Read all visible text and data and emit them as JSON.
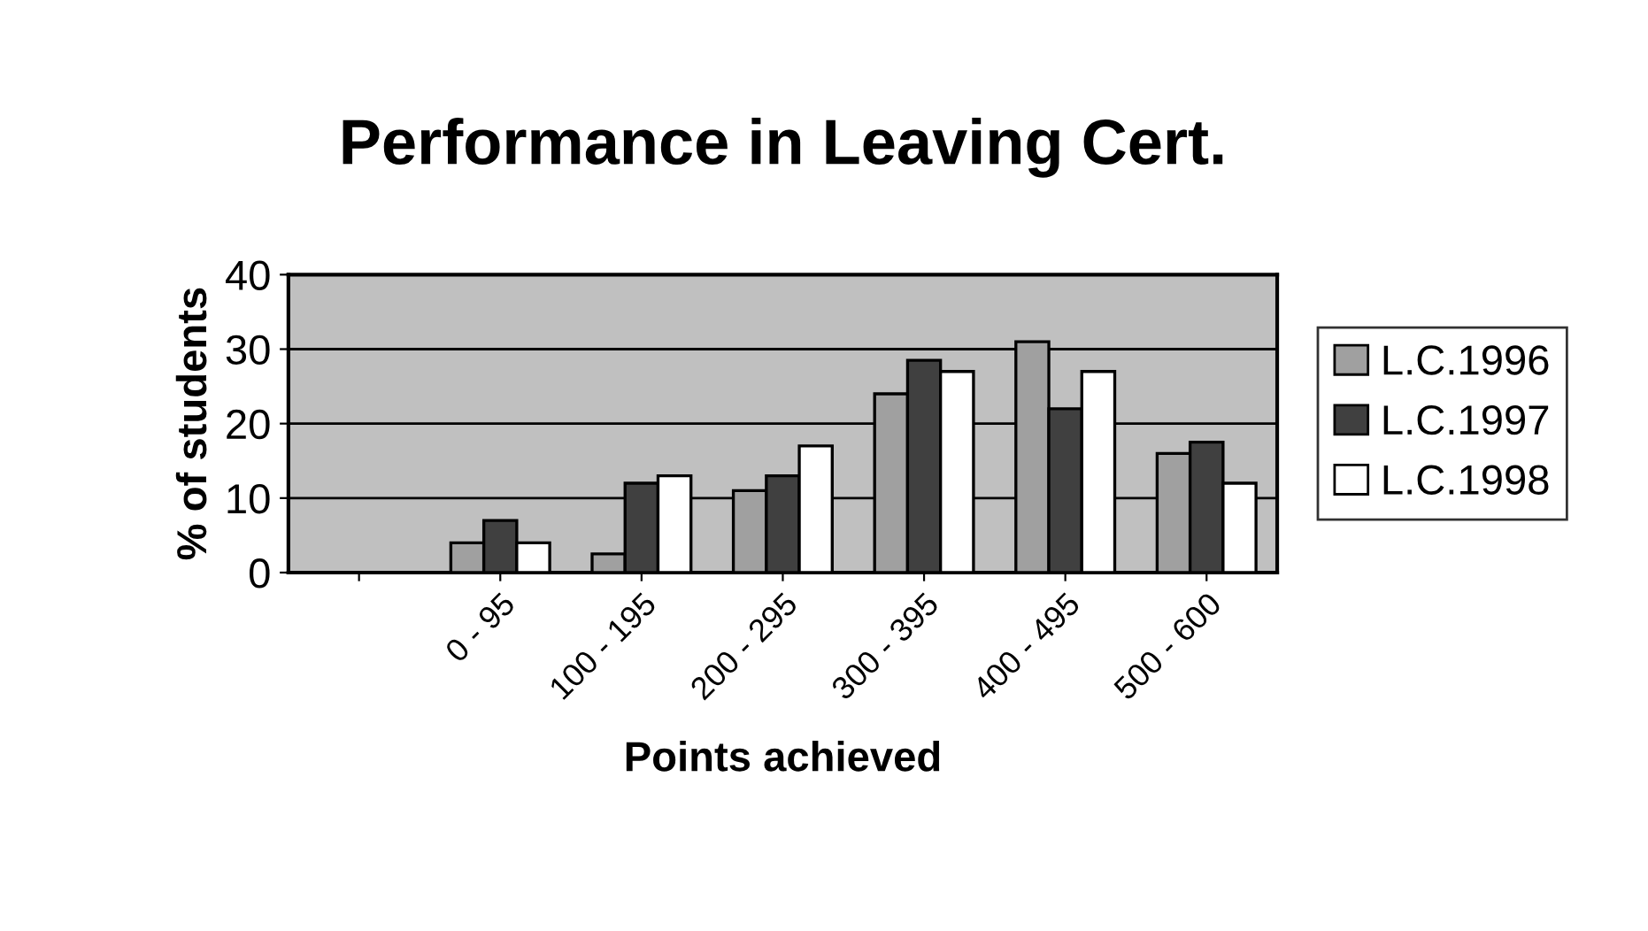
{
  "chart_data": {
    "type": "bar",
    "title": "Performance in Leaving Cert.",
    "xlabel": "Points achieved",
    "ylabel": "% of students",
    "categories": [
      null,
      "0 - 95",
      "100 - 195",
      "200 - 295",
      "300 - 395",
      "400 - 495",
      "500 - 600"
    ],
    "series": [
      {
        "name": "L.C.1996",
        "color": "#a0a0a0",
        "values": [
          null,
          4,
          2.5,
          11,
          24,
          31,
          16
        ]
      },
      {
        "name": "L.C.1997",
        "color": "#404040",
        "values": [
          null,
          7,
          12,
          13,
          28.5,
          22,
          17.5
        ]
      },
      {
        "name": "L.C.1998",
        "color": "#ffffff",
        "values": [
          null,
          4,
          13,
          17,
          27,
          27,
          12
        ]
      }
    ],
    "ylim": [
      0,
      40
    ],
    "yticks": [
      0,
      10,
      20,
      30,
      40
    ],
    "grid": "y",
    "legend": "right"
  }
}
